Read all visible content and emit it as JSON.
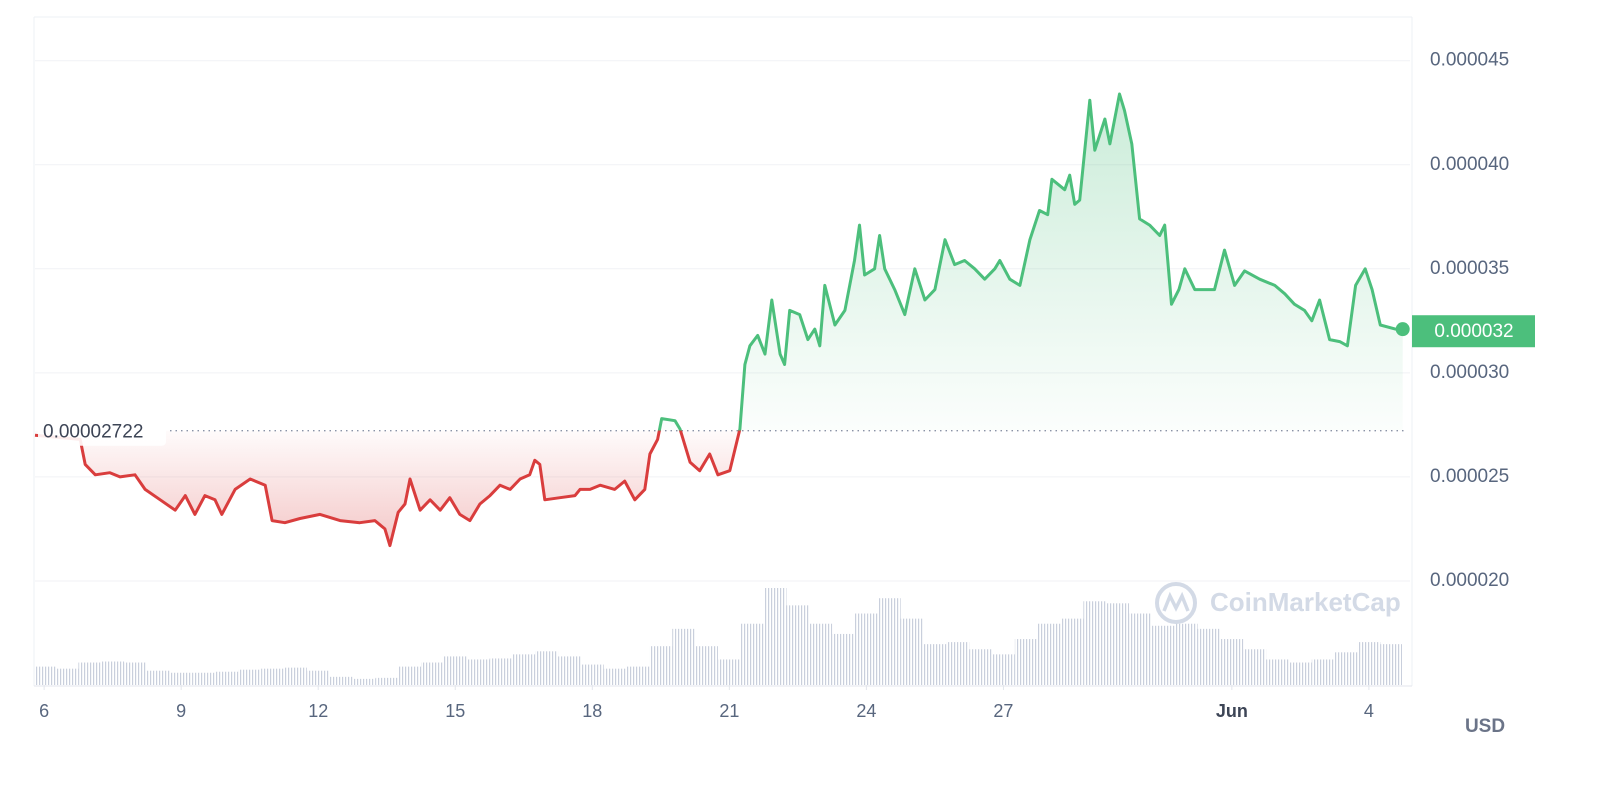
{
  "chart_data": {
    "type": "line",
    "x": [
      -0.2,
      0.79,
      0.9,
      1.12,
      1.44,
      1.66,
      1.99,
      2.21,
      2.54,
      2.87,
      3.09,
      3.3,
      3.52,
      3.74,
      3.89,
      4.18,
      4.51,
      4.84,
      4.99,
      5.27,
      5.6,
      6.04,
      6.48,
      6.91,
      7.24,
      7.46,
      7.57,
      7.75,
      7.9,
      8.01,
      8.23,
      8.45,
      8.67,
      8.88,
      9.1,
      9.32,
      9.54,
      9.76,
      9.98,
      10.2,
      10.42,
      10.63,
      10.74,
      10.85,
      10.96,
      11.29,
      11.62,
      11.73,
      11.95,
      12.17,
      12.49,
      12.71,
      12.93,
      13.15,
      13.26,
      13.43,
      13.52,
      13.81,
      13.92,
      14.14,
      14.35,
      14.57,
      14.75,
      15.01,
      15.23,
      15.34,
      15.45,
      15.62,
      15.78,
      15.93,
      16.11,
      16.21,
      16.32,
      16.54,
      16.72,
      16.87,
      16.98,
      17.09,
      17.31,
      17.53,
      17.74,
      17.85,
      17.96,
      18.18,
      18.29,
      18.4,
      18.62,
      18.84,
      19.06,
      19.28,
      19.5,
      19.72,
      19.93,
      20.15,
      20.37,
      20.59,
      20.81,
      20.92,
      21.14,
      21.36,
      21.58,
      21.79,
      21.97,
      22.06,
      22.34,
      22.45,
      22.56,
      22.67,
      22.89,
      23.0,
      23.22,
      23.33,
      23.54,
      23.65,
      23.81,
      23.98,
      24.2,
      24.42,
      24.53,
      24.68,
      24.84,
      24.97,
      25.19,
      25.4,
      25.62,
      25.84,
      26.06,
      26.28,
      26.61,
      26.94,
      27.16,
      27.37,
      27.59,
      27.75,
      27.92,
      28.14,
      28.36,
      28.53,
      28.71,
      28.92,
      29.07,
      29.25,
      29.58,
      29.74
    ],
    "values": [
      2.7e-05,
      2.68e-05,
      2.56e-05,
      2.51e-05,
      2.52e-05,
      2.5e-05,
      2.51e-05,
      2.44e-05,
      2.39e-05,
      2.34e-05,
      2.41e-05,
      2.32e-05,
      2.41e-05,
      2.39e-05,
      2.32e-05,
      2.44e-05,
      2.49e-05,
      2.46e-05,
      2.29e-05,
      2.28e-05,
      2.3e-05,
      2.32e-05,
      2.29e-05,
      2.28e-05,
      2.29e-05,
      2.25e-05,
      2.17e-05,
      2.33e-05,
      2.37e-05,
      2.49e-05,
      2.34e-05,
      2.39e-05,
      2.34e-05,
      2.4e-05,
      2.32e-05,
      2.29e-05,
      2.37e-05,
      2.41e-05,
      2.46e-05,
      2.44e-05,
      2.49e-05,
      2.51e-05,
      2.58e-05,
      2.56e-05,
      2.39e-05,
      2.4e-05,
      2.41e-05,
      2.44e-05,
      2.44e-05,
      2.46e-05,
      2.44e-05,
      2.48e-05,
      2.39e-05,
      2.44e-05,
      2.61e-05,
      2.68e-05,
      2.78e-05,
      2.77e-05,
      2.73e-05,
      2.57e-05,
      2.53e-05,
      2.61e-05,
      2.51e-05,
      2.53e-05,
      2.73e-05,
      3.04e-05,
      3.13e-05,
      3.18e-05,
      3.09e-05,
      3.35e-05,
      3.09e-05,
      3.04e-05,
      3.3e-05,
      3.28e-05,
      3.16e-05,
      3.21e-05,
      3.13e-05,
      3.42e-05,
      3.23e-05,
      3.3e-05,
      3.54e-05,
      3.71e-05,
      3.47e-05,
      3.5e-05,
      3.66e-05,
      3.5e-05,
      3.4e-05,
      3.28e-05,
      3.5e-05,
      3.35e-05,
      3.4e-05,
      3.64e-05,
      3.52e-05,
      3.54e-05,
      3.5e-05,
      3.45e-05,
      3.5e-05,
      3.54e-05,
      3.45e-05,
      3.42e-05,
      3.64e-05,
      3.78e-05,
      3.76e-05,
      3.93e-05,
      3.88e-05,
      3.95e-05,
      3.81e-05,
      3.83e-05,
      4.31e-05,
      4.07e-05,
      4.22e-05,
      4.1e-05,
      4.34e-05,
      4.26e-05,
      4.1e-05,
      3.74e-05,
      3.71e-05,
      3.66e-05,
      3.71e-05,
      3.33e-05,
      3.4e-05,
      3.5e-05,
      3.4e-05,
      3.4e-05,
      3.4e-05,
      3.59e-05,
      3.42e-05,
      3.49e-05,
      3.45e-05,
      3.42e-05,
      3.38e-05,
      3.33e-05,
      3.3e-05,
      3.25e-05,
      3.35e-05,
      3.16e-05,
      3.15e-05,
      3.13e-05,
      3.42e-05,
      3.5e-05,
      3.4e-05,
      3.23e-05,
      3.21e-05,
      3.21e-05
    ],
    "baseline": 2.722e-05,
    "last_price": 3.2e-05,
    "up_color": "#4cbf7c",
    "down_color": "#d93d3d",
    "xlim": [
      -0.2,
      29.9
    ],
    "xticks": [
      {
        "value": 0,
        "label": "6"
      },
      {
        "value": 3,
        "label": "9"
      },
      {
        "value": 6,
        "label": "12"
      },
      {
        "value": 9,
        "label": "15"
      },
      {
        "value": 12,
        "label": "18"
      },
      {
        "value": 15,
        "label": "21"
      },
      {
        "value": 18,
        "label": "24"
      },
      {
        "value": 21,
        "label": "27"
      },
      {
        "value": 26,
        "label": "Jun"
      },
      {
        "value": 29,
        "label": "4"
      }
    ],
    "ylim": [
      1.5e-05,
      4.71e-05
    ],
    "yticks": [
      {
        "value": 2e-05,
        "label": "0.000020"
      },
      2.5e-05,
      {
        "value": 3e-05,
        "label": "0.000030"
      },
      3.5e-05,
      {
        "value": 4e-05,
        "label": "0.000040"
      },
      4.5e-05
    ],
    "grid": true,
    "volume": {
      "x": [
        0,
        0.5,
        1,
        1.5,
        2,
        2.5,
        3,
        3.5,
        4,
        4.5,
        5,
        5.5,
        6,
        6.5,
        7,
        7.5,
        8,
        8.5,
        9,
        9.5,
        10,
        10.5,
        11,
        11.5,
        12,
        12.5,
        13,
        13.5,
        14,
        14.5,
        15,
        15.5,
        16,
        16.5,
        17,
        17.5,
        18,
        18.5,
        19,
        19.5,
        20,
        20.5,
        21,
        21.5,
        22,
        22.5,
        23,
        23.5,
        24,
        24.5,
        25,
        25.5,
        26,
        26.5,
        27,
        27.5,
        28,
        28.5,
        29,
        29.5
      ],
      "values": [
        18,
        16,
        22,
        23,
        22,
        14,
        12,
        12,
        13,
        15,
        16,
        17,
        14,
        8,
        6,
        7,
        18,
        22,
        28,
        25,
        26,
        30,
        33,
        28,
        20,
        16,
        18,
        38,
        55,
        38,
        25,
        60,
        95,
        78,
        60,
        50,
        70,
        85,
        65,
        40,
        42,
        35,
        30,
        45,
        60,
        65,
        82,
        80,
        70,
        58,
        60,
        55,
        45,
        35,
        25,
        22,
        25,
        32,
        42,
        40
      ]
    },
    "currency": "USD",
    "watermark": "CoinMarketCap"
  }
}
